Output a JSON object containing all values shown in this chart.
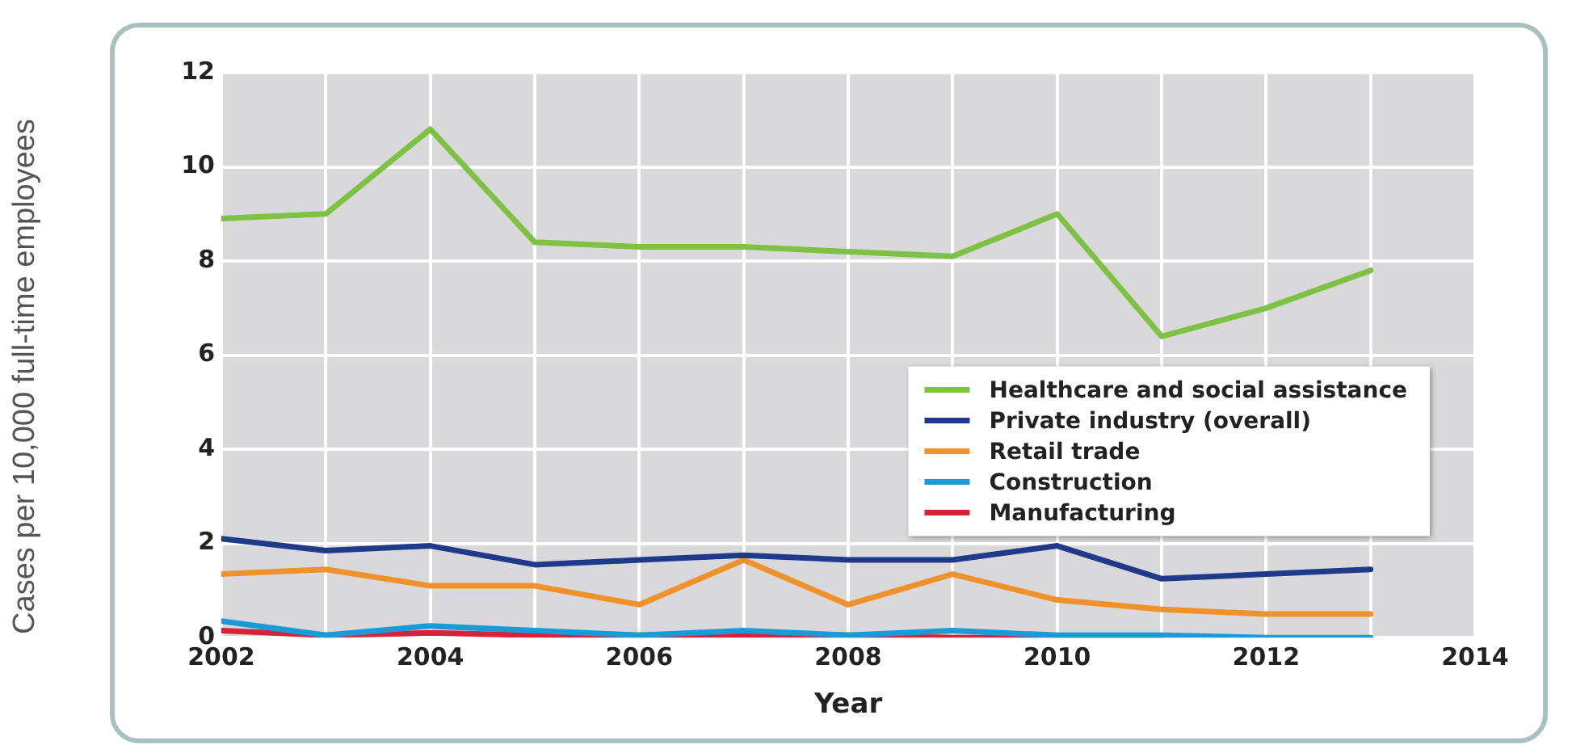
{
  "chart_data": {
    "type": "line",
    "xlabel": "Year",
    "ylabel": "Cases per 10,000 full-time employees",
    "x": [
      2002,
      2003,
      2004,
      2005,
      2006,
      2007,
      2008,
      2009,
      2010,
      2011,
      2012,
      2013
    ],
    "series": [
      {
        "name": "Healthcare and social assistance",
        "color": "#7dc242",
        "values": [
          8.9,
          9.0,
          10.8,
          8.4,
          8.3,
          8.3,
          8.2,
          8.1,
          9.0,
          6.4,
          7.0,
          7.8
        ]
      },
      {
        "name": "Private industry (overall)",
        "color": "#1f3a8a",
        "values": [
          2.1,
          1.85,
          1.95,
          1.55,
          1.65,
          1.75,
          1.65,
          1.65,
          1.95,
          1.25,
          1.35,
          1.45
        ]
      },
      {
        "name": "Retail trade",
        "color": "#f0922b",
        "values": [
          1.35,
          1.45,
          1.1,
          1.1,
          0.7,
          1.65,
          0.7,
          1.35,
          0.8,
          0.6,
          0.5,
          0.5
        ]
      },
      {
        "name": "Construction",
        "color": "#1a9ad6",
        "values": [
          0.35,
          0.05,
          0.25,
          0.15,
          0.05,
          0.15,
          0.05,
          0.15,
          0.05,
          0.05,
          0.0,
          0.0
        ]
      },
      {
        "name": "Manufacturing",
        "color": "#d6233a",
        "values": [
          0.15,
          0.05,
          0.1,
          0.05,
          0.05,
          0.05,
          0.05,
          0.0,
          0.0,
          0.0,
          null,
          null
        ]
      }
    ],
    "xlim": [
      2002,
      2014
    ],
    "xticks": [
      2002,
      {
        "value": 2003,
        "label": null
      },
      2004,
      {
        "value": 2005,
        "label": null
      },
      2006,
      {
        "value": 2007,
        "label": null
      },
      2008,
      {
        "value": 2009,
        "label": null
      },
      2010,
      {
        "value": 2011,
        "label": null
      },
      2012,
      {
        "value": 2013,
        "label": null
      },
      2014
    ],
    "ylim": [
      0,
      12
    ],
    "yticks": [
      0,
      2,
      4,
      6,
      8,
      10,
      12
    ],
    "grid": true,
    "legend": "right",
    "marker": "none",
    "line_style": "solid"
  }
}
